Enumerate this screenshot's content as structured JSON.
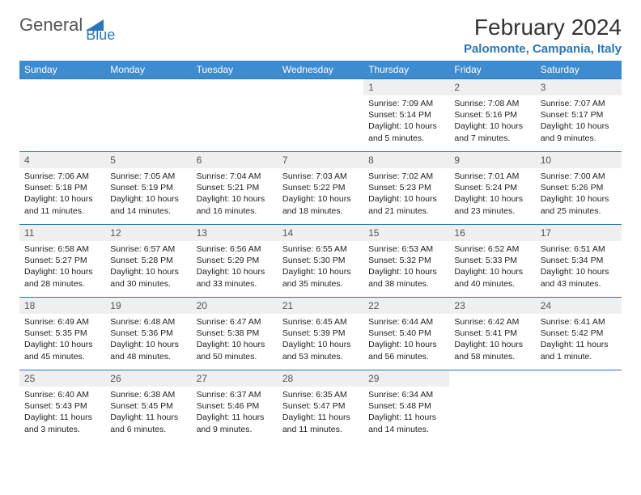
{
  "logo": {
    "part1": "General",
    "part2": "Blue"
  },
  "title": "February 2024",
  "location": "Palomonte, Campania, Italy",
  "colors": {
    "header_bg": "#3d8bd0",
    "header_text": "#ffffff",
    "accent": "#2776bd",
    "daynum_bg": "#efefef",
    "text": "#1a1a1a"
  },
  "weekdays": [
    "Sunday",
    "Monday",
    "Tuesday",
    "Wednesday",
    "Thursday",
    "Friday",
    "Saturday"
  ],
  "weeks": [
    [
      null,
      null,
      null,
      null,
      {
        "n": "1",
        "sr": "7:09 AM",
        "ss": "5:14 PM",
        "dl": "10 hours and 5 minutes."
      },
      {
        "n": "2",
        "sr": "7:08 AM",
        "ss": "5:16 PM",
        "dl": "10 hours and 7 minutes."
      },
      {
        "n": "3",
        "sr": "7:07 AM",
        "ss": "5:17 PM",
        "dl": "10 hours and 9 minutes."
      }
    ],
    [
      {
        "n": "4",
        "sr": "7:06 AM",
        "ss": "5:18 PM",
        "dl": "10 hours and 11 minutes."
      },
      {
        "n": "5",
        "sr": "7:05 AM",
        "ss": "5:19 PM",
        "dl": "10 hours and 14 minutes."
      },
      {
        "n": "6",
        "sr": "7:04 AM",
        "ss": "5:21 PM",
        "dl": "10 hours and 16 minutes."
      },
      {
        "n": "7",
        "sr": "7:03 AM",
        "ss": "5:22 PM",
        "dl": "10 hours and 18 minutes."
      },
      {
        "n": "8",
        "sr": "7:02 AM",
        "ss": "5:23 PM",
        "dl": "10 hours and 21 minutes."
      },
      {
        "n": "9",
        "sr": "7:01 AM",
        "ss": "5:24 PM",
        "dl": "10 hours and 23 minutes."
      },
      {
        "n": "10",
        "sr": "7:00 AM",
        "ss": "5:26 PM",
        "dl": "10 hours and 25 minutes."
      }
    ],
    [
      {
        "n": "11",
        "sr": "6:58 AM",
        "ss": "5:27 PM",
        "dl": "10 hours and 28 minutes."
      },
      {
        "n": "12",
        "sr": "6:57 AM",
        "ss": "5:28 PM",
        "dl": "10 hours and 30 minutes."
      },
      {
        "n": "13",
        "sr": "6:56 AM",
        "ss": "5:29 PM",
        "dl": "10 hours and 33 minutes."
      },
      {
        "n": "14",
        "sr": "6:55 AM",
        "ss": "5:30 PM",
        "dl": "10 hours and 35 minutes."
      },
      {
        "n": "15",
        "sr": "6:53 AM",
        "ss": "5:32 PM",
        "dl": "10 hours and 38 minutes."
      },
      {
        "n": "16",
        "sr": "6:52 AM",
        "ss": "5:33 PM",
        "dl": "10 hours and 40 minutes."
      },
      {
        "n": "17",
        "sr": "6:51 AM",
        "ss": "5:34 PM",
        "dl": "10 hours and 43 minutes."
      }
    ],
    [
      {
        "n": "18",
        "sr": "6:49 AM",
        "ss": "5:35 PM",
        "dl": "10 hours and 45 minutes."
      },
      {
        "n": "19",
        "sr": "6:48 AM",
        "ss": "5:36 PM",
        "dl": "10 hours and 48 minutes."
      },
      {
        "n": "20",
        "sr": "6:47 AM",
        "ss": "5:38 PM",
        "dl": "10 hours and 50 minutes."
      },
      {
        "n": "21",
        "sr": "6:45 AM",
        "ss": "5:39 PM",
        "dl": "10 hours and 53 minutes."
      },
      {
        "n": "22",
        "sr": "6:44 AM",
        "ss": "5:40 PM",
        "dl": "10 hours and 56 minutes."
      },
      {
        "n": "23",
        "sr": "6:42 AM",
        "ss": "5:41 PM",
        "dl": "10 hours and 58 minutes."
      },
      {
        "n": "24",
        "sr": "6:41 AM",
        "ss": "5:42 PM",
        "dl": "11 hours and 1 minute."
      }
    ],
    [
      {
        "n": "25",
        "sr": "6:40 AM",
        "ss": "5:43 PM",
        "dl": "11 hours and 3 minutes."
      },
      {
        "n": "26",
        "sr": "6:38 AM",
        "ss": "5:45 PM",
        "dl": "11 hours and 6 minutes."
      },
      {
        "n": "27",
        "sr": "6:37 AM",
        "ss": "5:46 PM",
        "dl": "11 hours and 9 minutes."
      },
      {
        "n": "28",
        "sr": "6:35 AM",
        "ss": "5:47 PM",
        "dl": "11 hours and 11 minutes."
      },
      {
        "n": "29",
        "sr": "6:34 AM",
        "ss": "5:48 PM",
        "dl": "11 hours and 14 minutes."
      },
      null,
      null
    ]
  ],
  "labels": {
    "sunrise": "Sunrise: ",
    "sunset": "Sunset: ",
    "daylight": "Daylight: "
  }
}
